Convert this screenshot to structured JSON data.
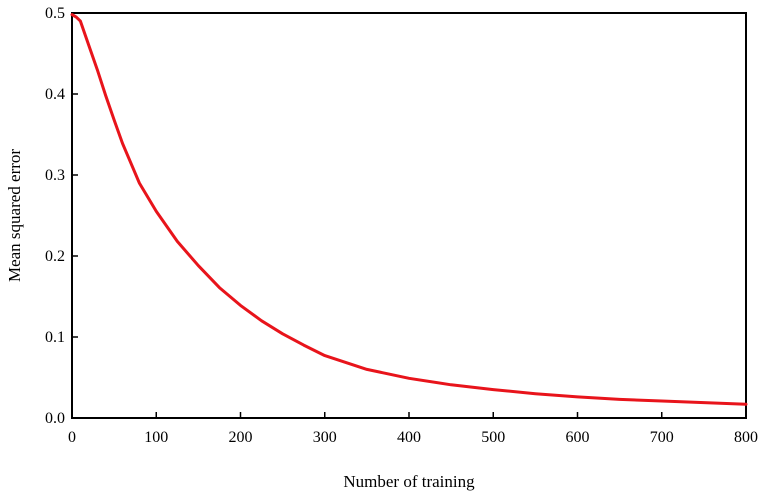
{
  "chart_data": {
    "type": "line",
    "xlabel": "Number of training",
    "ylabel": "Mean squared error",
    "xlim": [
      0,
      800
    ],
    "ylim": [
      0,
      0.5
    ],
    "xticks": [
      0,
      100,
      200,
      300,
      400,
      500,
      600,
      700,
      800
    ],
    "yticks": [
      0.0,
      0.1,
      0.2,
      0.3,
      0.4,
      0.5
    ],
    "ytick_labels": [
      "0.0",
      "0.1",
      "0.2",
      "0.3",
      "0.4",
      "0.5"
    ],
    "grid": false,
    "series": [
      {
        "color": "#e8141b",
        "x": [
          0,
          5,
          10,
          20,
          30,
          40,
          50,
          60,
          80,
          100,
          125,
          150,
          175,
          200,
          225,
          250,
          275,
          300,
          350,
          400,
          450,
          500,
          550,
          600,
          650,
          700,
          750,
          800
        ],
        "y": [
          0.498,
          0.495,
          0.49,
          0.46,
          0.43,
          0.398,
          0.368,
          0.339,
          0.29,
          0.255,
          0.218,
          0.188,
          0.161,
          0.139,
          0.12,
          0.104,
          0.09,
          0.077,
          0.06,
          0.049,
          0.041,
          0.035,
          0.03,
          0.026,
          0.023,
          0.021,
          0.019,
          0.017
        ]
      }
    ]
  }
}
